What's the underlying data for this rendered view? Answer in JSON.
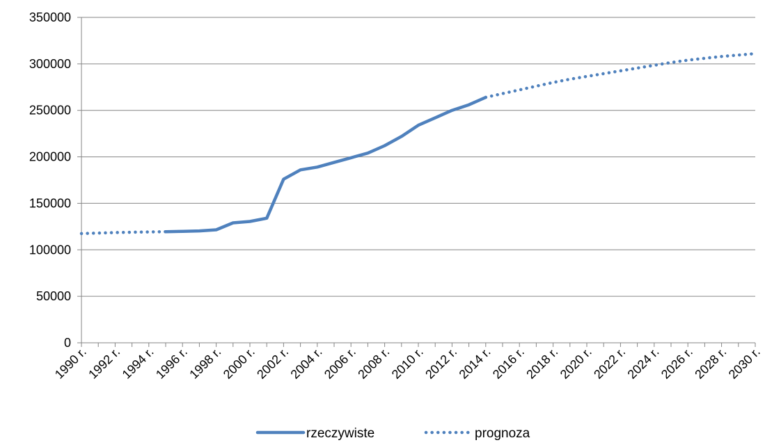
{
  "chart_data": {
    "type": "line",
    "title": "",
    "xlabel": "",
    "ylabel": "",
    "ylim": [
      0,
      350000
    ],
    "y_ticks": [
      0,
      50000,
      100000,
      150000,
      200000,
      250000,
      300000,
      350000
    ],
    "y_tick_labels": [
      "0",
      "50000",
      "100000",
      "150000",
      "200000",
      "250000",
      "300000",
      "350000"
    ],
    "x_tick_labels": [
      "1990 r.",
      "1992 r.",
      "1994 r.",
      "1996 r.",
      "1998 r.",
      "2000 r.",
      "2002 r.",
      "2004 r.",
      "2006 r.",
      "2008 r.",
      "2010 r.",
      "2012 r.",
      "2014 r.",
      "2016 r.",
      "2018 r.",
      "2020 r.",
      "2022 r.",
      "2024 r.",
      "2026 r.",
      "2028 r.",
      "2030 r."
    ],
    "years": [
      1990,
      1991,
      1992,
      1993,
      1994,
      1995,
      1996,
      1997,
      1998,
      1999,
      2000,
      2001,
      2002,
      2003,
      2004,
      2005,
      2006,
      2007,
      2008,
      2009,
      2010,
      2011,
      2012,
      2013,
      2014,
      2015,
      2016,
      2017,
      2018,
      2019,
      2020,
      2021,
      2022,
      2023,
      2024,
      2025,
      2026,
      2027,
      2028,
      2029,
      2030
    ],
    "grid": true,
    "legend_position": "bottom",
    "series": [
      {
        "name": "rzeczywiste",
        "style": "solid",
        "color": "#4f81bd",
        "points": [
          [
            1995,
            119500
          ],
          [
            1996,
            119800
          ],
          [
            1997,
            120300
          ],
          [
            1998,
            121500
          ],
          [
            1999,
            129000
          ],
          [
            2000,
            130500
          ],
          [
            2001,
            134000
          ],
          [
            2002,
            176000
          ],
          [
            2003,
            186000
          ],
          [
            2004,
            189000
          ],
          [
            2005,
            194000
          ],
          [
            2006,
            199000
          ],
          [
            2007,
            204000
          ],
          [
            2008,
            212000
          ],
          [
            2009,
            222000
          ],
          [
            2010,
            234000
          ],
          [
            2011,
            242000
          ],
          [
            2012,
            250000
          ],
          [
            2013,
            256000
          ],
          [
            2014,
            264000
          ]
        ]
      },
      {
        "name": "prognoza",
        "style": "dotted",
        "color": "#4f81bd",
        "points": [
          [
            1990,
            117500
          ],
          [
            1991,
            118000
          ],
          [
            1992,
            118500
          ],
          [
            1993,
            118900
          ],
          [
            1994,
            119200
          ],
          [
            1995,
            119500
          ],
          [
            2014,
            264000
          ],
          [
            2015,
            268000
          ],
          [
            2016,
            272000
          ],
          [
            2017,
            276000
          ],
          [
            2018,
            280000
          ],
          [
            2019,
            283500
          ],
          [
            2020,
            286500
          ],
          [
            2021,
            289500
          ],
          [
            2022,
            292500
          ],
          [
            2023,
            295500
          ],
          [
            2024,
            298500
          ],
          [
            2025,
            301500
          ],
          [
            2026,
            304000
          ],
          [
            2027,
            306000
          ],
          [
            2028,
            308000
          ],
          [
            2029,
            309500
          ],
          [
            2030,
            311000
          ]
        ]
      }
    ]
  }
}
